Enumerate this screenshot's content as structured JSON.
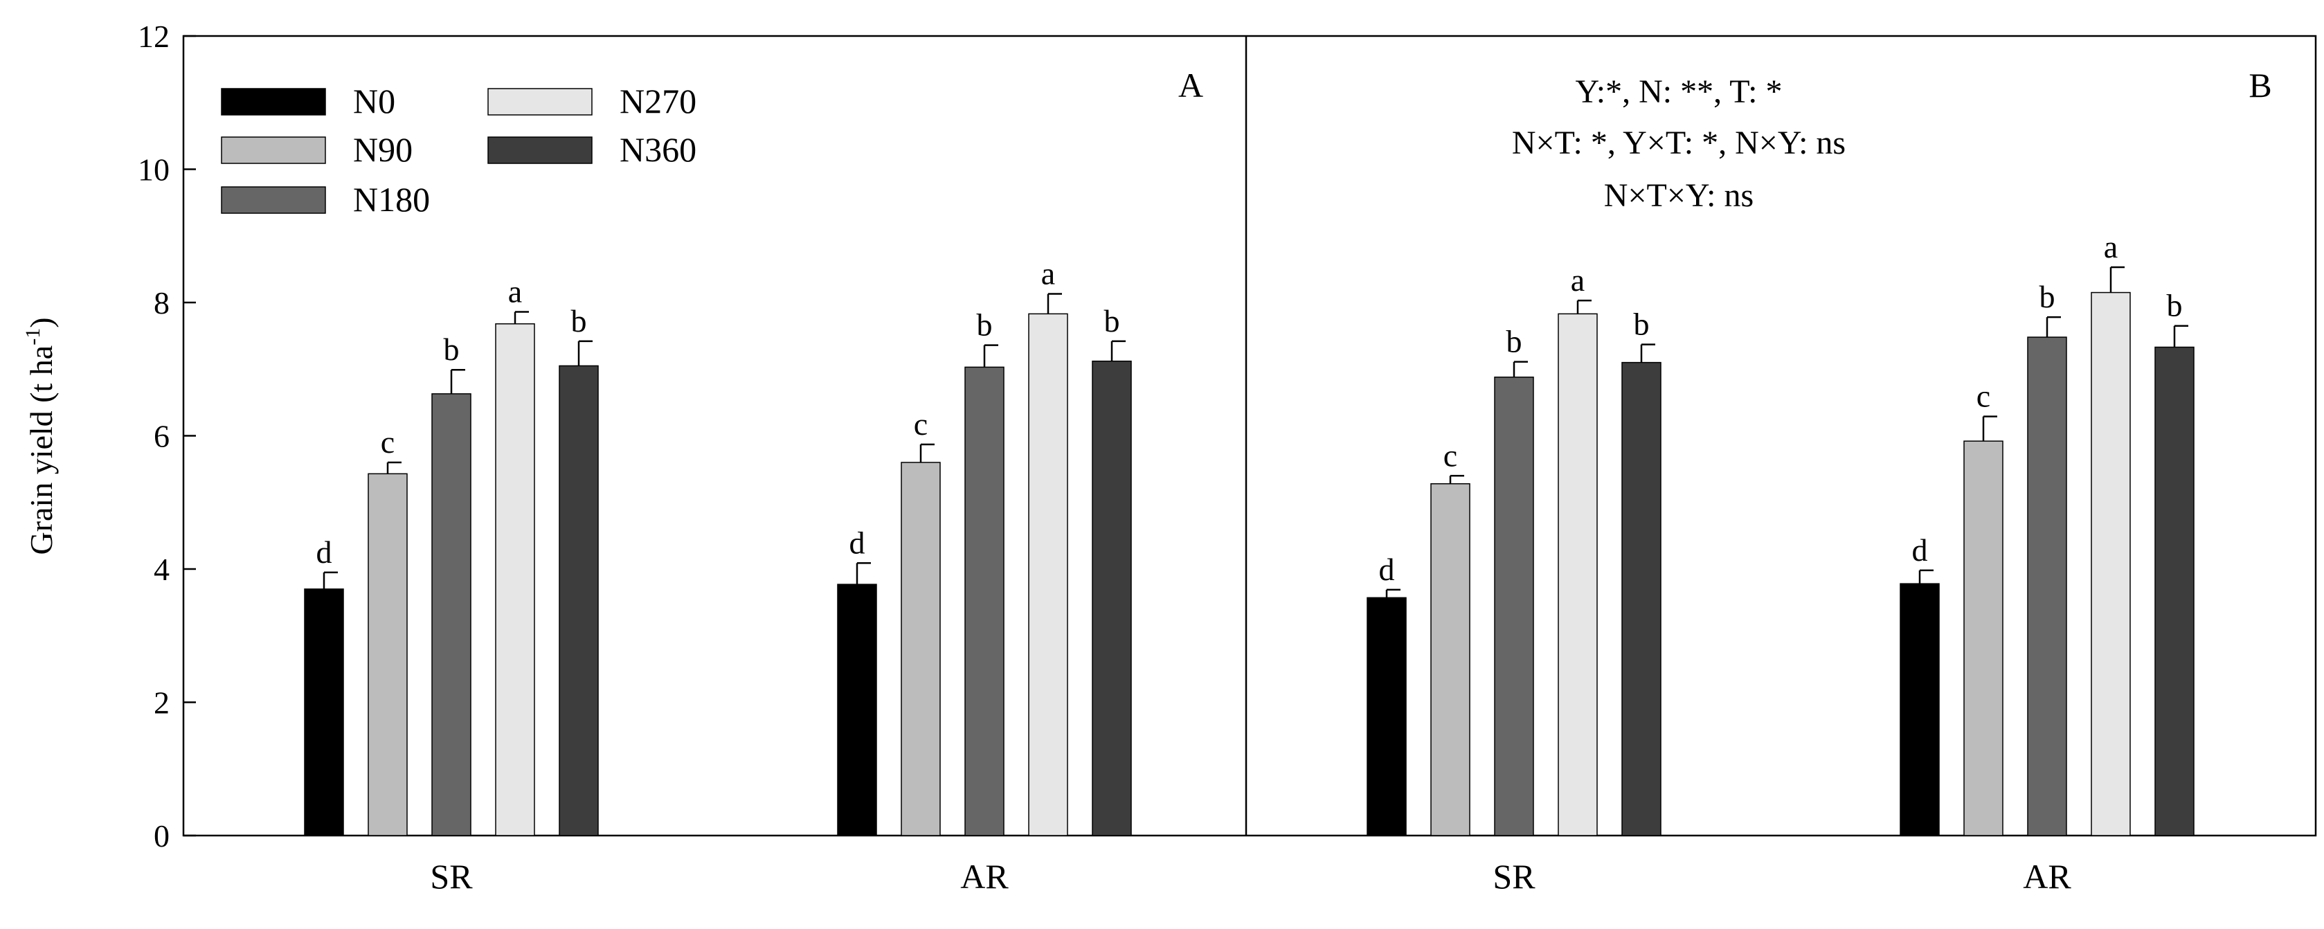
{
  "chart_data": [
    {
      "panel": "A",
      "type": "bar",
      "categories": [
        "SR",
        "AR"
      ],
      "series": [
        {
          "name": "N0",
          "color": "#000000",
          "values": [
            3.7,
            3.77
          ],
          "errors": [
            0.25,
            0.32
          ],
          "letters": [
            "d",
            "d"
          ]
        },
        {
          "name": "N90",
          "color": "#bcbcbc",
          "values": [
            5.43,
            5.6
          ],
          "errors": [
            0.17,
            0.27
          ],
          "letters": [
            "c",
            "c"
          ]
        },
        {
          "name": "N180",
          "color": "#666666",
          "values": [
            6.63,
            7.03
          ],
          "errors": [
            0.36,
            0.33
          ],
          "letters": [
            "b",
            "b"
          ]
        },
        {
          "name": "N270",
          "color": "#e6e6e6",
          "values": [
            7.68,
            7.83
          ],
          "errors": [
            0.18,
            0.3
          ],
          "letters": [
            "a",
            "a"
          ]
        },
        {
          "name": "N360",
          "color": "#3d3d3d",
          "values": [
            7.05,
            7.12
          ],
          "errors": [
            0.37,
            0.3
          ],
          "letters": [
            "b",
            "b"
          ]
        }
      ],
      "ylabel_main": "Grain yield  (t ha",
      "ylabel_sup": "-1",
      "ylabel_end": ")",
      "ylim": [
        0,
        12
      ],
      "yticks": [
        "0",
        "2",
        "4",
        "6",
        "8",
        "10",
        "12"
      ]
    },
    {
      "panel": "B",
      "type": "bar",
      "categories": [
        "SR",
        "AR"
      ],
      "series": [
        {
          "name": "N0",
          "color": "#000000",
          "values": [
            3.57,
            3.78
          ],
          "errors": [
            0.12,
            0.2
          ],
          "letters": [
            "d",
            "d"
          ]
        },
        {
          "name": "N90",
          "color": "#bcbcbc",
          "values": [
            5.28,
            5.92
          ],
          "errors": [
            0.12,
            0.37
          ],
          "letters": [
            "c",
            "c"
          ]
        },
        {
          "name": "N180",
          "color": "#666666",
          "values": [
            6.88,
            7.48
          ],
          "errors": [
            0.23,
            0.3
          ],
          "letters": [
            "b",
            "b"
          ]
        },
        {
          "name": "N270",
          "color": "#e6e6e6",
          "values": [
            7.83,
            8.15
          ],
          "errors": [
            0.2,
            0.38
          ],
          "letters": [
            "a",
            "a"
          ]
        },
        {
          "name": "N360",
          "color": "#3d3d3d",
          "values": [
            7.1,
            7.33
          ],
          "errors": [
            0.27,
            0.32
          ],
          "letters": [
            "b",
            "b"
          ]
        }
      ],
      "annotations": [
        "Y:*,  N: **,  T: *",
        "N×T: *,  Y×T: *,  N×Y: ns",
        "N×T×Y: ns"
      ],
      "ylim": [
        0,
        12
      ]
    }
  ]
}
